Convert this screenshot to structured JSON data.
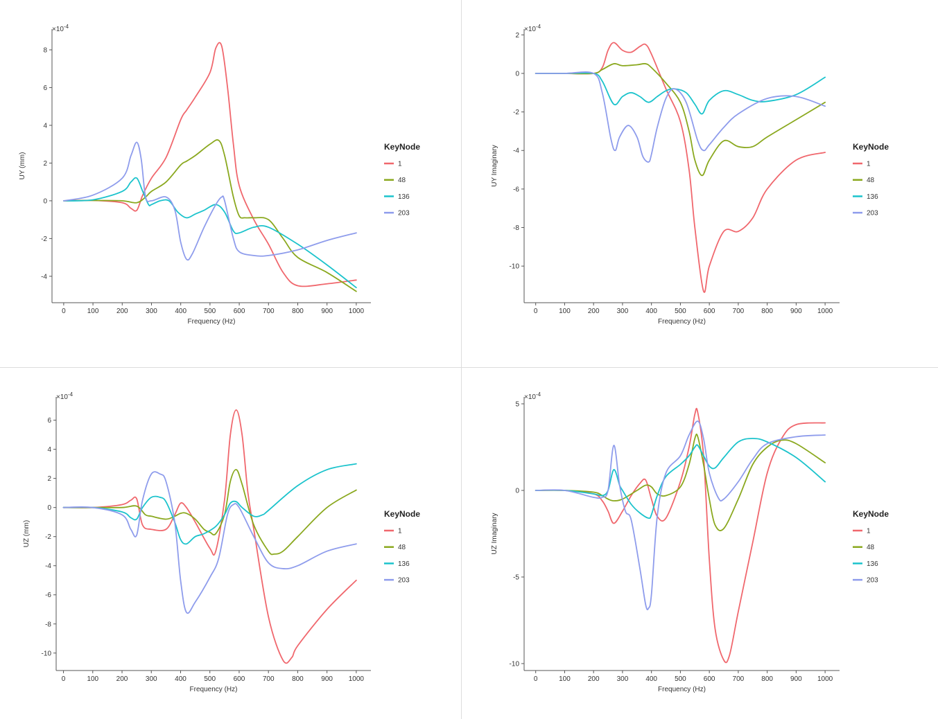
{
  "colors": {
    "1": "#F0676D",
    "48": "#8AA81E",
    "136": "#1BC3CC",
    "203": "#8E9CEC",
    "axis": "#555555",
    "divider": "#dcdcdc"
  },
  "legend_title": "KeyNode",
  "chart_data": [
    {
      "type": "line",
      "title": "",
      "xlabel": "Frequency (Hz)",
      "ylabel": "UY (mm)",
      "exponent_label": "×10",
      "exponent_power": "-4",
      "xlim": [
        -40,
        1050
      ],
      "ylim": [
        -5.4,
        9.1
      ],
      "xticks": [
        0,
        100,
        200,
        300,
        400,
        500,
        600,
        700,
        800,
        900,
        1000
      ],
      "yticks": [
        -4,
        -2,
        0,
        2,
        4,
        6,
        8
      ],
      "grid": false,
      "legend_position": "right",
      "series": [
        {
          "name": "1",
          "x": [
            0,
            100,
            200,
            230,
            250,
            270,
            300,
            350,
            400,
            420,
            450,
            500,
            520,
            540,
            560,
            580,
            600,
            650,
            700,
            750,
            800,
            900,
            1000
          ],
          "y": [
            0,
            0.02,
            -0.1,
            -0.4,
            -0.5,
            0.3,
            1.2,
            2.3,
            4.3,
            4.8,
            5.5,
            6.8,
            8.1,
            8.2,
            6,
            3,
            0.8,
            -1,
            -2.3,
            -3.8,
            -4.5,
            -4.4,
            -4.2
          ]
        },
        {
          "name": "48",
          "x": [
            0,
            100,
            200,
            250,
            280,
            300,
            350,
            400,
            420,
            450,
            500,
            530,
            550,
            580,
            600,
            620,
            650,
            700,
            750,
            800,
            900,
            1000
          ],
          "y": [
            0,
            0.02,
            0,
            -0.1,
            0.2,
            0.5,
            1,
            1.9,
            2.1,
            2.4,
            3,
            3.2,
            2.4,
            0.2,
            -0.8,
            -0.9,
            -0.9,
            -1,
            -2,
            -3,
            -3.8,
            -4.8
          ]
        },
        {
          "name": "136",
          "x": [
            0,
            100,
            200,
            230,
            250,
            270,
            290,
            300,
            330,
            360,
            390,
            420,
            450,
            480,
            520,
            550,
            580,
            600,
            650,
            700,
            800,
            900,
            1000
          ],
          "y": [
            0,
            0.05,
            0.5,
            1,
            1.2,
            0.5,
            -0.2,
            -0.2,
            0,
            0,
            -0.6,
            -0.9,
            -0.7,
            -0.5,
            -0.2,
            -0.6,
            -1.6,
            -1.7,
            -1.4,
            -1.4,
            -2.3,
            -3.4,
            -4.6
          ]
        },
        {
          "name": "203",
          "x": [
            0,
            100,
            200,
            230,
            250,
            265,
            280,
            300,
            350,
            380,
            400,
            420,
            440,
            480,
            520,
            540,
            550,
            580,
            600,
            650,
            700,
            800,
            900,
            1000
          ],
          "y": [
            0,
            0.3,
            1.2,
            2.4,
            3.1,
            2.2,
            0.2,
            0,
            0.2,
            -0.5,
            -2.2,
            -3.1,
            -2.8,
            -1.4,
            -0.2,
            0.2,
            0,
            -2,
            -2.7,
            -2.9,
            -2.9,
            -2.6,
            -2.1,
            -1.7
          ]
        }
      ]
    },
    {
      "type": "line",
      "title": "",
      "xlabel": "Frequency (Hz)",
      "ylabel": "UY Imaginary",
      "exponent_label": "×10",
      "exponent_power": "-4",
      "xlim": [
        -40,
        1050
      ],
      "ylim": [
        -11.9,
        2.3
      ],
      "xticks": [
        0,
        100,
        200,
        300,
        400,
        500,
        600,
        700,
        800,
        900,
        1000
      ],
      "yticks": [
        -10,
        -8,
        -6,
        -4,
        -2,
        0,
        2
      ],
      "grid": false,
      "legend_position": "right",
      "series": [
        {
          "name": "1",
          "x": [
            0,
            100,
            200,
            230,
            250,
            270,
            300,
            330,
            360,
            380,
            400,
            450,
            500,
            530,
            550,
            580,
            600,
            650,
            700,
            750,
            800,
            900,
            1000
          ],
          "y": [
            0,
            0,
            0,
            0.3,
            1.2,
            1.6,
            1.2,
            1.1,
            1.4,
            1.5,
            1,
            -0.8,
            -2.5,
            -5,
            -8,
            -11.3,
            -10,
            -8.2,
            -8.2,
            -7.5,
            -6,
            -4.5,
            -4.1
          ]
        },
        {
          "name": "48",
          "x": [
            0,
            100,
            200,
            230,
            270,
            300,
            350,
            380,
            400,
            450,
            500,
            530,
            550,
            575,
            600,
            650,
            700,
            750,
            800,
            900,
            1000
          ],
          "y": [
            0,
            0,
            0,
            0.2,
            0.5,
            0.4,
            0.45,
            0.5,
            0.3,
            -0.5,
            -1.5,
            -3,
            -4.5,
            -5.3,
            -4.5,
            -3.5,
            -3.8,
            -3.8,
            -3.3,
            -2.4,
            -1.5
          ]
        },
        {
          "name": "136",
          "x": [
            0,
            100,
            200,
            230,
            270,
            300,
            330,
            360,
            390,
            420,
            450,
            480,
            520,
            550,
            575,
            600,
            650,
            700,
            750,
            800,
            900,
            1000
          ],
          "y": [
            0,
            0,
            0,
            -0.4,
            -1.6,
            -1.2,
            -1,
            -1.2,
            -1.5,
            -1.2,
            -0.9,
            -0.8,
            -1,
            -1.6,
            -2.1,
            -1.4,
            -0.9,
            -1.1,
            -1.4,
            -1.45,
            -1.1,
            -0.2
          ]
        },
        {
          "name": "203",
          "x": [
            0,
            100,
            200,
            230,
            260,
            275,
            290,
            320,
            350,
            370,
            390,
            400,
            420,
            450,
            480,
            520,
            560,
            580,
            600,
            650,
            700,
            800,
            900,
            1000
          ],
          "y": [
            0,
            0,
            0,
            -1,
            -3.4,
            -4,
            -3.3,
            -2.7,
            -3.3,
            -4.3,
            -4.6,
            -4.2,
            -2.8,
            -1.3,
            -0.8,
            -1.5,
            -3.5,
            -4,
            -3.7,
            -2.8,
            -2.1,
            -1.3,
            -1.2,
            -1.7
          ]
        }
      ]
    },
    {
      "type": "line",
      "title": "",
      "xlabel": "Frequency (Hz)",
      "ylabel": "UZ (mm)",
      "exponent_label": "×10",
      "exponent_power": "-4",
      "xlim": [
        -25,
        1050
      ],
      "ylim": [
        -11.2,
        7.6
      ],
      "xticks": [
        0,
        100,
        200,
        300,
        400,
        500,
        600,
        700,
        800,
        900,
        1000
      ],
      "yticks": [
        -10,
        -8,
        -6,
        -4,
        -2,
        0,
        2,
        4,
        6
      ],
      "grid": false,
      "legend_position": "right",
      "series": [
        {
          "name": "1",
          "x": [
            0,
            100,
            200,
            230,
            250,
            270,
            300,
            350,
            380,
            400,
            420,
            450,
            500,
            520,
            550,
            570,
            590,
            610,
            630,
            650,
            700,
            750,
            780,
            800,
            900,
            1000
          ],
          "y": [
            0,
            0,
            0.2,
            0.5,
            0.6,
            -1.2,
            -1.5,
            -1.5,
            -0.5,
            0.3,
            0,
            -1,
            -2.8,
            -3,
            0.5,
            5,
            6.7,
            5,
            1,
            -1.5,
            -7.5,
            -10.5,
            -10.3,
            -9.5,
            -7,
            -5
          ]
        },
        {
          "name": "48",
          "x": [
            0,
            100,
            200,
            250,
            280,
            300,
            350,
            380,
            400,
            420,
            450,
            480,
            500,
            520,
            550,
            570,
            590,
            610,
            650,
            700,
            720,
            750,
            800,
            900,
            1000
          ],
          "y": [
            0,
            0,
            0,
            0.1,
            -0.5,
            -0.6,
            -0.8,
            -0.6,
            -0.4,
            -0.4,
            -0.8,
            -1.5,
            -1.7,
            -1.8,
            -0.5,
            1.8,
            2.6,
            1.6,
            -1.2,
            -3,
            -3.2,
            -3,
            -2,
            0,
            1.2
          ]
        },
        {
          "name": "136",
          "x": [
            0,
            100,
            200,
            230,
            250,
            270,
            300,
            330,
            350,
            380,
            400,
            420,
            450,
            480,
            520,
            550,
            570,
            590,
            610,
            650,
            680,
            700,
            800,
            900,
            1000
          ],
          "y": [
            0,
            0,
            -0.3,
            -0.7,
            -0.8,
            0,
            0.7,
            0.7,
            0.4,
            -1,
            -2.2,
            -2.5,
            -2,
            -1.8,
            -1.3,
            -0.5,
            0.3,
            0.4,
            0,
            -0.6,
            -0.5,
            -0.2,
            1.5,
            2.6,
            3
          ]
        },
        {
          "name": "203",
          "x": [
            0,
            100,
            200,
            230,
            250,
            270,
            300,
            330,
            350,
            380,
            400,
            420,
            450,
            500,
            530,
            560,
            580,
            600,
            650,
            700,
            750,
            800,
            900,
            1000
          ],
          "y": [
            0,
            0,
            -0.5,
            -1.5,
            -1.9,
            0.5,
            2.3,
            2.3,
            1.8,
            -1,
            -5,
            -7.2,
            -6.5,
            -4.8,
            -3.5,
            -0.5,
            0.2,
            0,
            -2,
            -3.8,
            -4.2,
            -4,
            -3,
            -2.5
          ]
        }
      ]
    },
    {
      "type": "line",
      "title": "",
      "xlabel": "Frequency (Hz)",
      "ylabel": "UZ Imaginary",
      "exponent_label": "×10",
      "exponent_power": "-4",
      "xlim": [
        -40,
        1050
      ],
      "ylim": [
        -10.4,
        5.4
      ],
      "xticks": [
        0,
        100,
        200,
        300,
        400,
        500,
        600,
        700,
        800,
        900,
        1000
      ],
      "yticks": [
        -10,
        -5,
        0,
        5
      ],
      "grid": false,
      "legend_position": "right",
      "series": [
        {
          "name": "1",
          "x": [
            0,
            100,
            200,
            230,
            250,
            270,
            300,
            330,
            360,
            380,
            400,
            420,
            450,
            500,
            530,
            550,
            560,
            580,
            600,
            620,
            650,
            670,
            700,
            750,
            800,
            850,
            900,
            1000
          ],
          "y": [
            0,
            0,
            -0.2,
            -0.6,
            -1.2,
            -1.9,
            -1.2,
            -0.3,
            0.4,
            0.6,
            -0.5,
            -1.5,
            -1.6,
            0.5,
            2.5,
            4.4,
            4.5,
            2,
            -4,
            -8,
            -9.8,
            -9.5,
            -7,
            -3,
            1,
            3,
            3.8,
            3.9
          ]
        },
        {
          "name": "48",
          "x": [
            0,
            100,
            200,
            230,
            250,
            270,
            300,
            350,
            380,
            400,
            420,
            450,
            500,
            530,
            550,
            560,
            580,
            600,
            620,
            650,
            700,
            750,
            800,
            850,
            900,
            1000
          ],
          "y": [
            0,
            0,
            -0.1,
            -0.3,
            -0.5,
            -0.6,
            -0.5,
            0,
            0.3,
            0.2,
            -0.2,
            -0.3,
            0.2,
            1.5,
            3,
            3.1,
            1.5,
            -0.5,
            -2,
            -2.2,
            -0.5,
            1.5,
            2.5,
            2.9,
            2.7,
            1.6
          ]
        },
        {
          "name": "136",
          "x": [
            0,
            100,
            200,
            230,
            250,
            270,
            290,
            300,
            330,
            360,
            390,
            400,
            420,
            450,
            500,
            530,
            550,
            560,
            580,
            600,
            620,
            650,
            700,
            750,
            800,
            900,
            1000
          ],
          "y": [
            0,
            0,
            -0.2,
            -0.3,
            0,
            1.2,
            0.3,
            0,
            -0.8,
            -1.3,
            -1.6,
            -1.4,
            -0.3,
            0.8,
            1.5,
            2,
            2.5,
            2.6,
            2,
            1.4,
            1.3,
            1.9,
            2.8,
            3,
            2.8,
            1.9,
            0.5
          ]
        },
        {
          "name": "203",
          "x": [
            0,
            100,
            200,
            230,
            250,
            270,
            290,
            310,
            330,
            360,
            380,
            390,
            400,
            420,
            450,
            500,
            530,
            560,
            580,
            600,
            630,
            650,
            700,
            750,
            800,
            900,
            1000
          ],
          "y": [
            0,
            0,
            -0.4,
            -0.4,
            0,
            2.6,
            0.3,
            -1.2,
            -1.7,
            -4.5,
            -6.6,
            -6.8,
            -6,
            -1.5,
            1,
            2,
            3.2,
            4,
            3,
            1,
            -0.4,
            -0.5,
            0.5,
            1.8,
            2.7,
            3.1,
            3.2
          ]
        }
      ]
    }
  ]
}
